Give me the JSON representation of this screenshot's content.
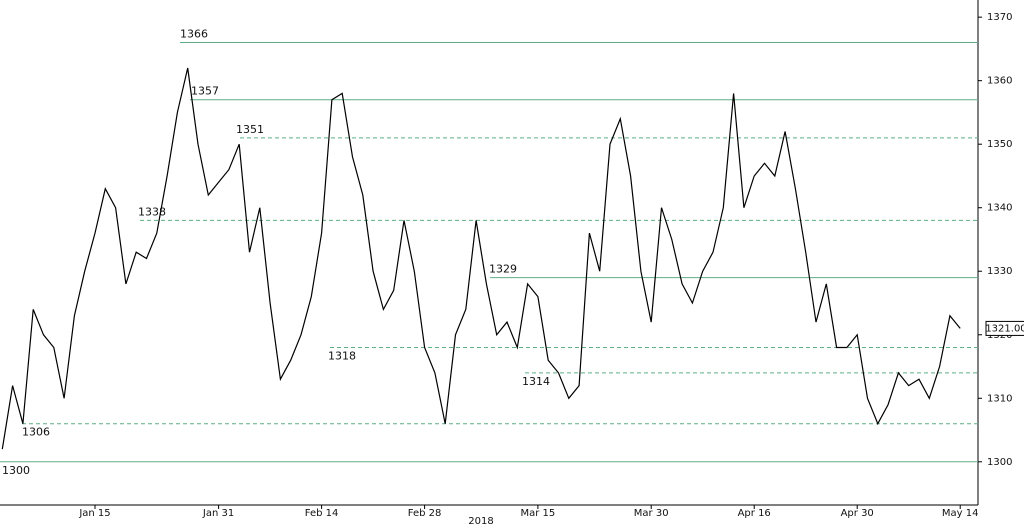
{
  "chart_data": {
    "type": "line",
    "xlabel": "2018",
    "categories": [
      null,
      null,
      null,
      null,
      null,
      null,
      null,
      null,
      null,
      "Jan 15",
      null,
      null,
      null,
      null,
      null,
      null,
      null,
      null,
      null,
      null,
      null,
      "Jan 31",
      null,
      null,
      null,
      null,
      null,
      null,
      null,
      null,
      null,
      "Feb 14",
      null,
      null,
      null,
      null,
      null,
      null,
      null,
      null,
      null,
      "Feb 28",
      null,
      null,
      null,
      null,
      null,
      null,
      null,
      null,
      null,
      null,
      "Mar 15",
      null,
      null,
      null,
      null,
      null,
      null,
      null,
      null,
      null,
      null,
      "Mar 30",
      null,
      null,
      null,
      null,
      null,
      null,
      null,
      null,
      null,
      "Apr 16",
      null,
      null,
      null,
      null,
      null,
      null,
      null,
      null,
      null,
      "Apr 30",
      null,
      null,
      null,
      null,
      null,
      null,
      null,
      null,
      null,
      "May 14"
    ],
    "values": [
      1302,
      1312,
      1306,
      1324,
      1320,
      1318,
      1310,
      1323,
      1330,
      1336,
      1343,
      1340,
      1328,
      1333,
      1332,
      1336,
      1345,
      1355,
      1362,
      1350,
      1342,
      1344,
      1346,
      1350,
      1333,
      1340,
      1325,
      1313,
      1316,
      1320,
      1326,
      1336,
      1357,
      1358,
      1348,
      1342,
      1330,
      1324,
      1327,
      1338,
      1330,
      1318,
      1314,
      1306,
      1320,
      1324,
      1338,
      1328,
      1320,
      1322,
      1318,
      1328,
      1326,
      1316,
      1314,
      1310,
      1312,
      1336,
      1330,
      1350,
      1354,
      1345,
      1330,
      1322,
      1340,
      1335,
      1328,
      1325,
      1330,
      1333,
      1340,
      1358,
      1340,
      1345,
      1347,
      1345,
      1352,
      1343,
      1333,
      1322,
      1328,
      1318,
      1318,
      1320,
      1310,
      1306,
      1309,
      1314,
      1312,
      1313,
      1310,
      1315,
      1323,
      1321
    ],
    "color": "#000000",
    "ylim": [
      1293.2,
      1372.7
    ],
    "yticks": [
      1300,
      1310,
      1320,
      1330,
      1340,
      1350,
      1360,
      1370
    ],
    "levels": [
      {
        "value": 1366,
        "style": "solid"
      },
      {
        "value": 1357,
        "style": "solid"
      },
      {
        "value": 1351,
        "style": "dashed"
      },
      {
        "value": 1338,
        "style": "dashed"
      },
      {
        "value": 1329,
        "style": "solid"
      },
      {
        "value": 1318,
        "style": "dashed"
      },
      {
        "value": 1314,
        "style": "dashed"
      },
      {
        "value": 1306,
        "style": "dashed"
      },
      {
        "value": 1300,
        "style": "solid"
      }
    ],
    "level_color": "#5fae86",
    "last_value": 1321,
    "last_label": "1321.00"
  }
}
